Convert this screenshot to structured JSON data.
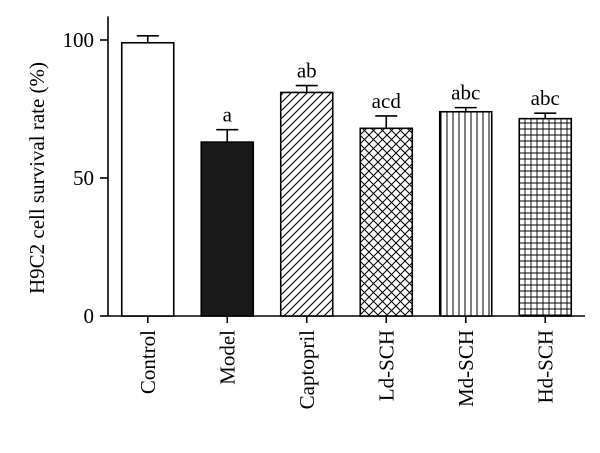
{
  "chart_data": {
    "type": "bar",
    "title": "",
    "xlabel": "",
    "ylabel": "H9C2 cell survival rate (%)",
    "ylim": [
      0,
      110
    ],
    "yticks": [
      0,
      50,
      100
    ],
    "grid": false,
    "categories": [
      "Control",
      "Model",
      "Captopril",
      "Ld-SCH",
      "Md-SCH",
      "Hd-SCH"
    ],
    "values": [
      99,
      63,
      81,
      68,
      74,
      71.5
    ],
    "errors": [
      2.5,
      4.5,
      2.5,
      4.5,
      1.5,
      2
    ],
    "significance": [
      "",
      "a",
      "ab",
      "acd",
      "abc",
      "abc"
    ],
    "fills": [
      "white",
      "black",
      "diagonal-hatch",
      "crosshatch",
      "vertical-lines",
      "grid"
    ]
  }
}
